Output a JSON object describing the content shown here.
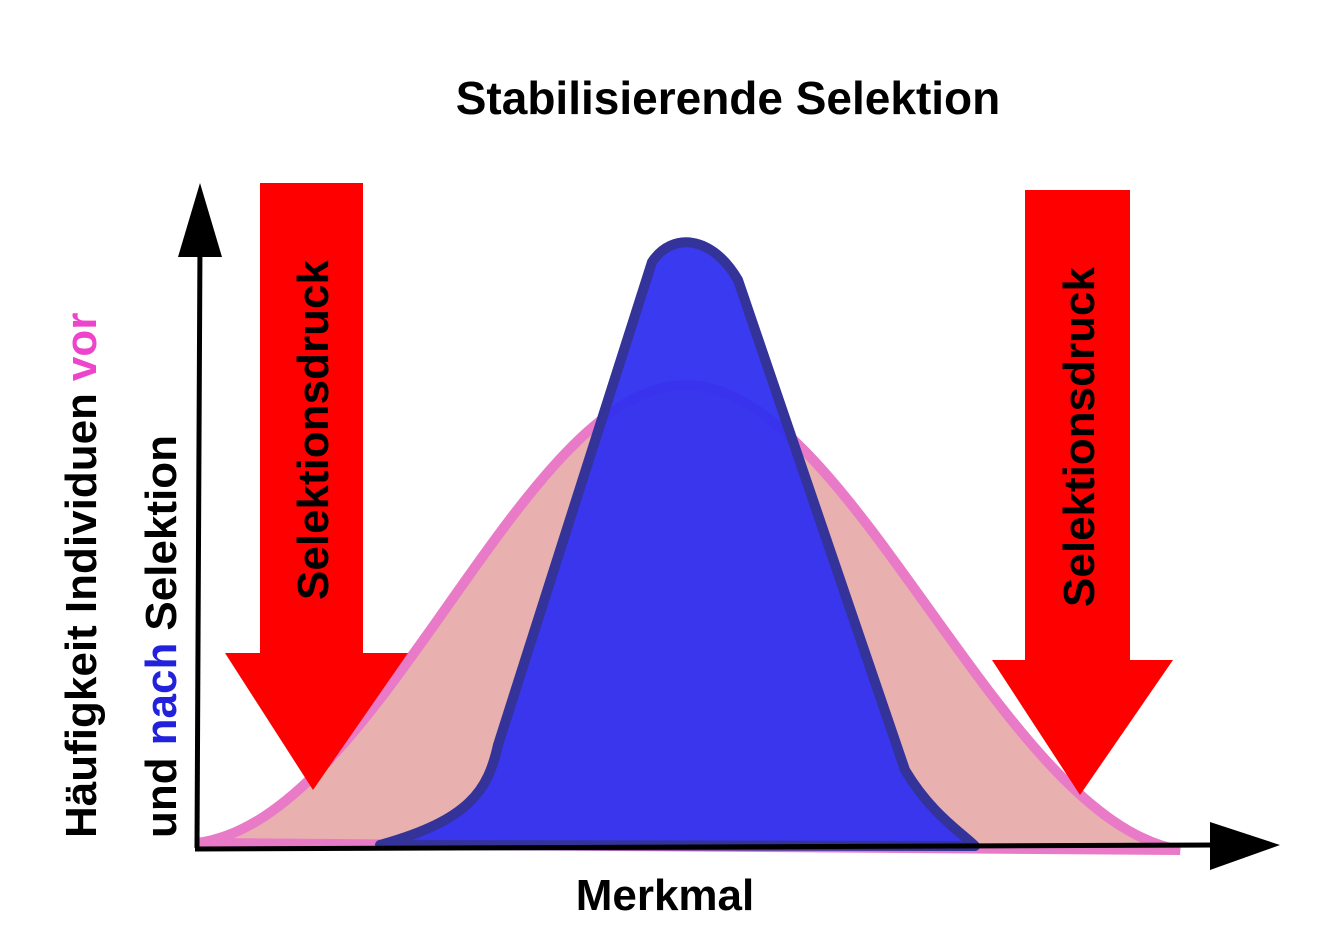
{
  "title": "Stabilisierende Selektion",
  "x_axis_label": "Merkmal",
  "y_axis_label": {
    "line1": [
      "Häufigkeit Individuen",
      "vor"
    ],
    "line2": [
      "und",
      "nach",
      "Selektion"
    ]
  },
  "arrows": [
    {
      "label": "Selektionsdruck"
    },
    {
      "label": "Selektionsdruck"
    }
  ]
}
